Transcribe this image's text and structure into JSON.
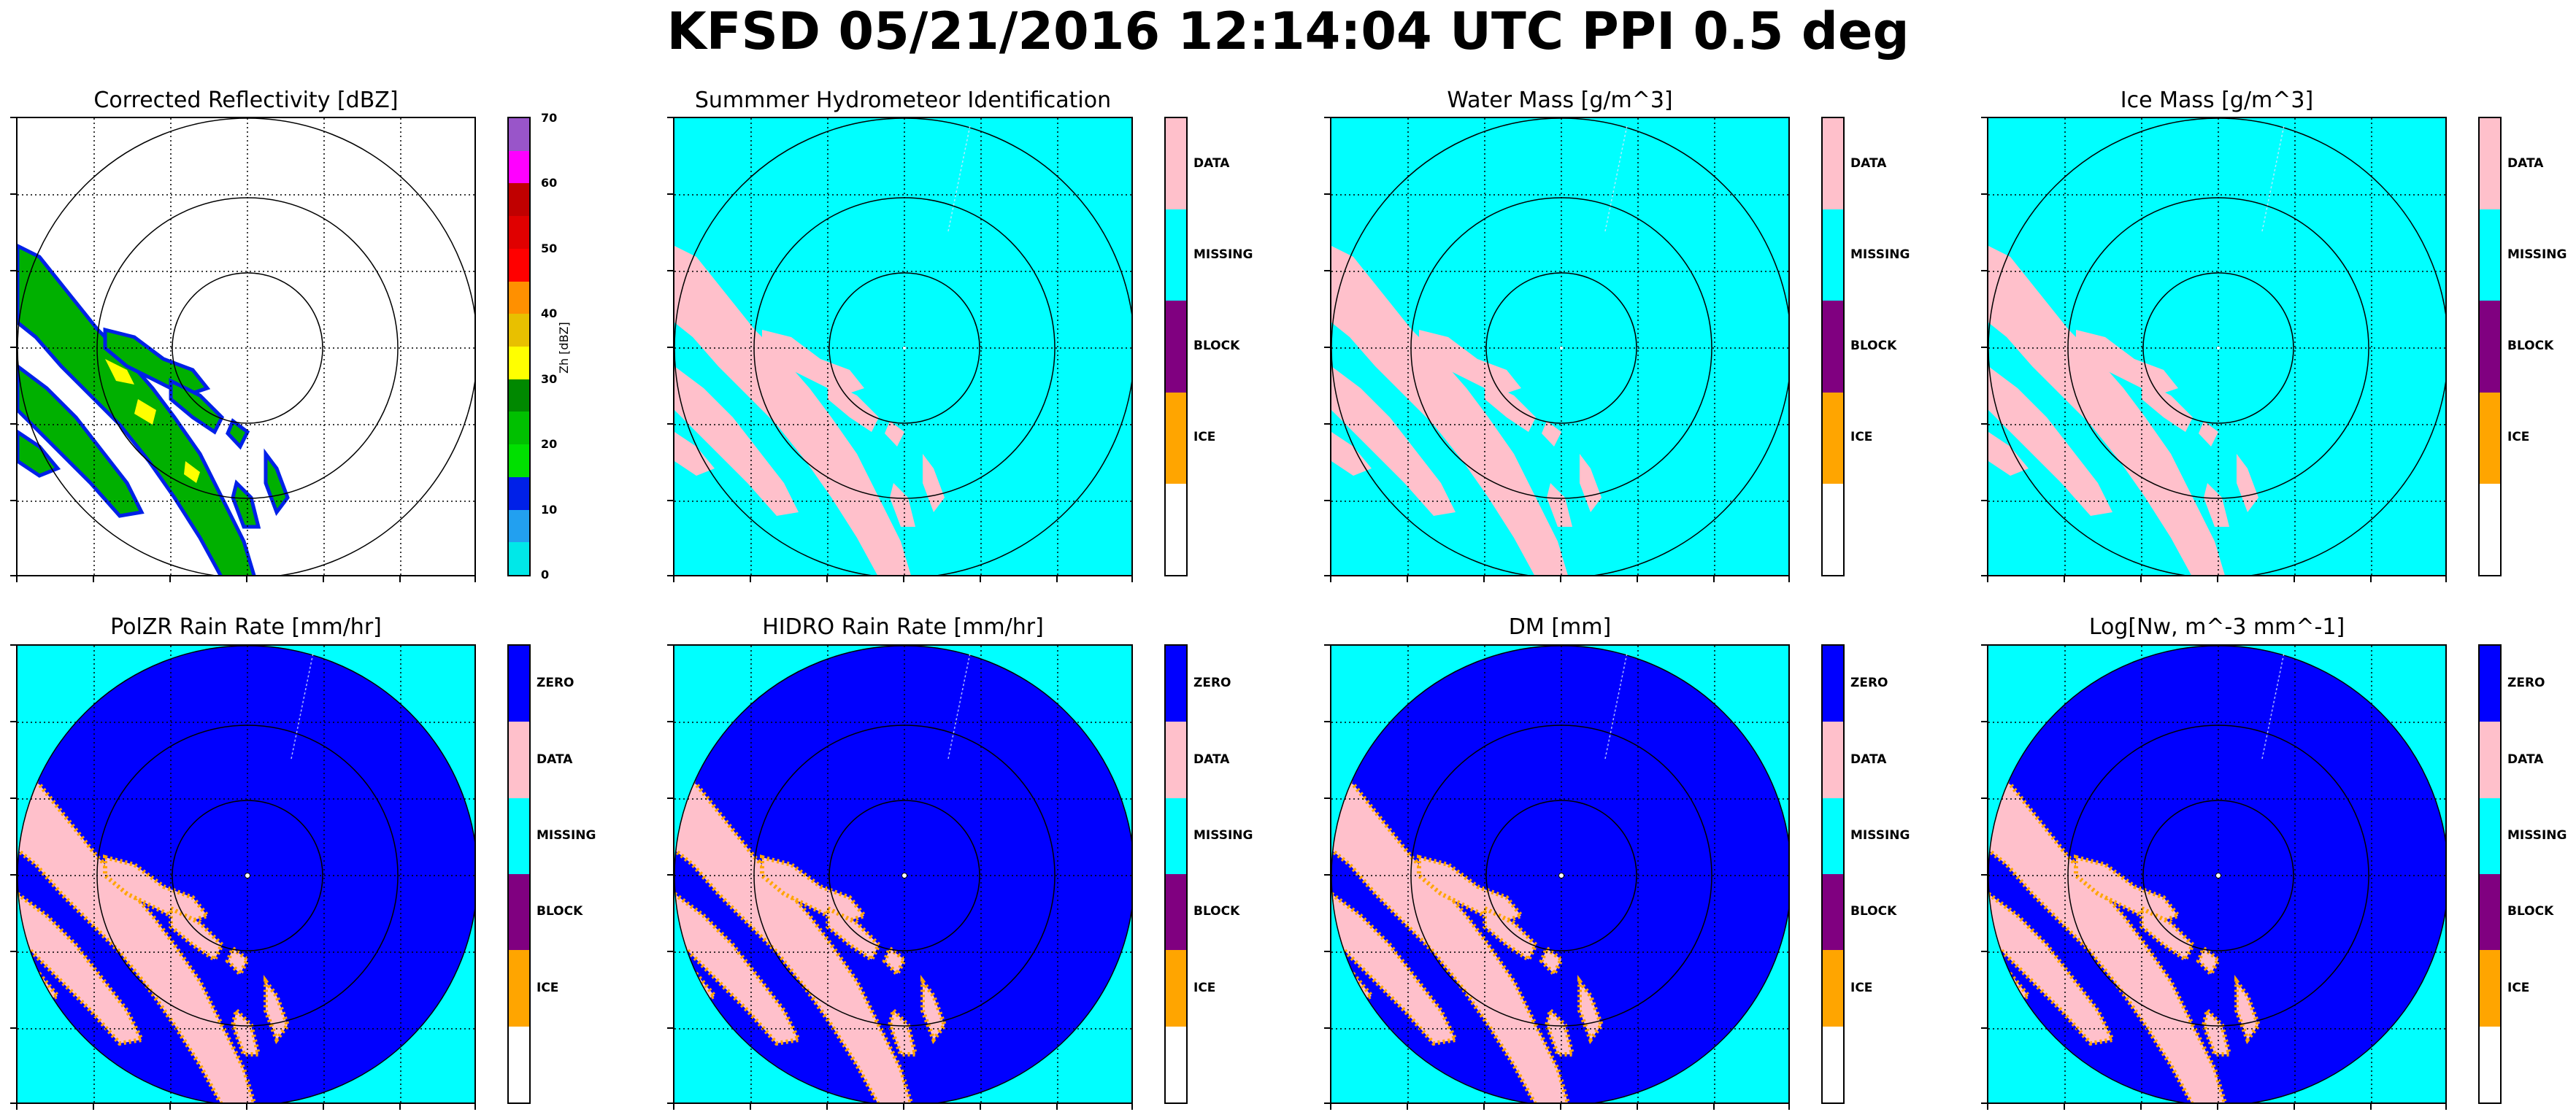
{
  "figure": {
    "suptitle": "KFSD 05/21/2016 12:14:04 UTC PPI 0.5 deg"
  },
  "colors": {
    "data": "#ffc0cb",
    "missing": "#00ffff",
    "block": "#800080",
    "ice": "#ffa500",
    "zero": "#0000ff",
    "empty": "#ffffff"
  },
  "chart_data": [
    {
      "type": "heatmap",
      "title": "Corrected Reflectivity [dBZ]",
      "colorbar": {
        "kind": "continuous",
        "label": "Zh [dBZ]",
        "ticks": [
          "0",
          "10",
          "20",
          "30",
          "40",
          "50",
          "60",
          "70"
        ],
        "levels": [
          {
            "value": 0,
            "color": "#00e8e8"
          },
          {
            "value": 5,
            "color": "#22a0f0"
          },
          {
            "value": 10,
            "color": "#0020e8"
          },
          {
            "value": 15,
            "color": "#00e000"
          },
          {
            "value": 20,
            "color": "#00c000"
          },
          {
            "value": 25,
            "color": "#008800"
          },
          {
            "value": 30,
            "color": "#ffff00"
          },
          {
            "value": 35,
            "color": "#e8c000"
          },
          {
            "value": 40,
            "color": "#ff9000"
          },
          {
            "value": 45,
            "color": "#ff0000"
          },
          {
            "value": 50,
            "color": "#e00000"
          },
          {
            "value": 55,
            "color": "#c00000"
          },
          {
            "value": 60,
            "color": "#ff00ff"
          },
          {
            "value": 65,
            "color": "#9955c9"
          }
        ]
      },
      "background": "#ffffff",
      "echo_color": "#00b000",
      "range_rings": 3,
      "grid": true
    },
    {
      "type": "heatmap",
      "title": "Summmer Hydrometeor Identification",
      "colorbar": {
        "kind": "categorical",
        "categories": [
          "DATA",
          "MISSING",
          "BLOCK",
          "ICE",
          ""
        ]
      },
      "background": "#00ffff",
      "echo_color": "#ffc0cb",
      "range_rings": 3,
      "grid": true
    },
    {
      "type": "heatmap",
      "title": "Water Mass [g/m^3]",
      "colorbar": {
        "kind": "categorical",
        "categories": [
          "DATA",
          "MISSING",
          "BLOCK",
          "ICE",
          ""
        ]
      },
      "background": "#00ffff",
      "echo_color": "#ffc0cb",
      "range_rings": 3,
      "grid": true
    },
    {
      "type": "heatmap",
      "title": "Ice Mass [g/m^3]",
      "colorbar": {
        "kind": "categorical",
        "categories": [
          "DATA",
          "MISSING",
          "BLOCK",
          "ICE",
          ""
        ]
      },
      "background": "#00ffff",
      "echo_color": "#ffc0cb",
      "range_rings": 3,
      "grid": true
    },
    {
      "type": "heatmap",
      "title": "PolZR Rain Rate [mm/hr]",
      "colorbar": {
        "kind": "categorical",
        "categories": [
          "ZERO",
          "DATA",
          "MISSING",
          "BLOCK",
          "ICE",
          ""
        ]
      },
      "background": "#00ffff",
      "disk_color": "#0000ff",
      "echo_color": "#ffc0cb",
      "edge_color": "#ffa500",
      "range_rings": 3,
      "grid": true
    },
    {
      "type": "heatmap",
      "title": "HIDRO Rain Rate [mm/hr]",
      "colorbar": {
        "kind": "categorical",
        "categories": [
          "ZERO",
          "DATA",
          "MISSING",
          "BLOCK",
          "ICE",
          ""
        ]
      },
      "background": "#00ffff",
      "disk_color": "#0000ff",
      "echo_color": "#ffc0cb",
      "edge_color": "#ffa500",
      "range_rings": 3,
      "grid": true
    },
    {
      "type": "heatmap",
      "title": "DM [mm]",
      "colorbar": {
        "kind": "categorical",
        "categories": [
          "ZERO",
          "DATA",
          "MISSING",
          "BLOCK",
          "ICE",
          ""
        ]
      },
      "background": "#00ffff",
      "disk_color": "#0000ff",
      "echo_color": "#ffc0cb",
      "edge_color": "#ffa500",
      "range_rings": 3,
      "grid": true
    },
    {
      "type": "heatmap",
      "title": "Log[Nw, m^-3 mm^-1]",
      "colorbar": {
        "kind": "categorical",
        "categories": [
          "ZERO",
          "DATA",
          "MISSING",
          "BLOCK",
          "ICE",
          ""
        ]
      },
      "background": "#00ffff",
      "disk_color": "#0000ff",
      "echo_color": "#ffc0cb",
      "edge_color": "#ffa500",
      "range_rings": 3,
      "grid": true
    }
  ]
}
